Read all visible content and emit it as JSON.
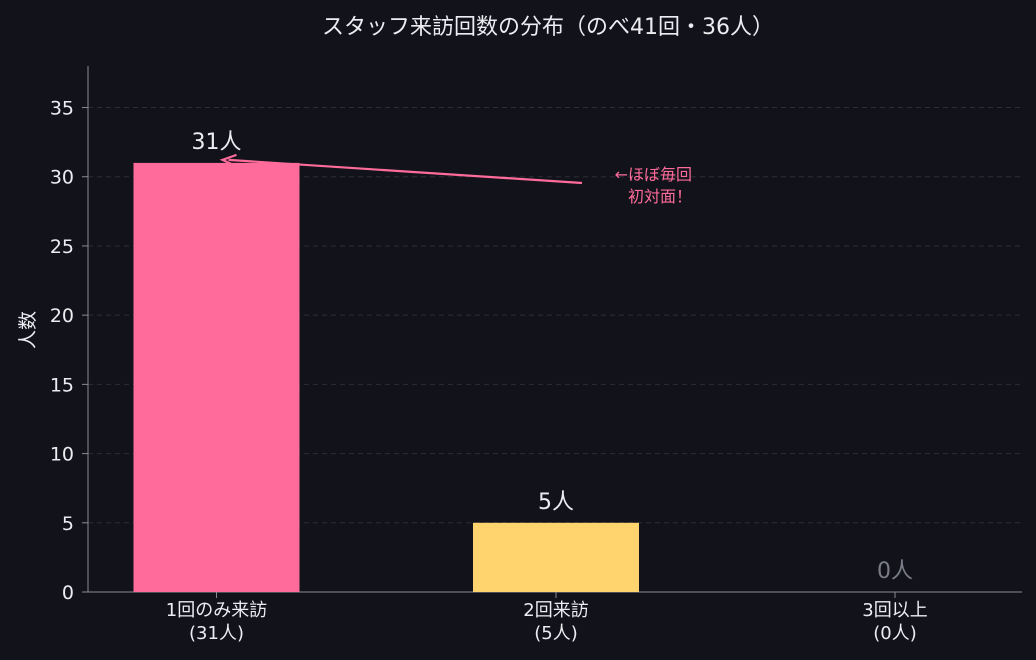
{
  "chart_data": {
    "type": "bar",
    "title": "スタッフ来訪回数の分布（のべ41回・36人）",
    "xlabel": "",
    "ylabel": "人数",
    "categories": [
      "1回のみ来訪\n(31人)",
      "2回来訪\n(5人)",
      "3回以上\n(0人)"
    ],
    "values": [
      31,
      5,
      0
    ],
    "data_labels": [
      "31人",
      "5人",
      "0人"
    ],
    "ylim": [
      0,
      38
    ],
    "yticks": [
      0,
      5,
      10,
      15,
      20,
      25,
      30,
      35
    ],
    "grid": "horizontal-dashed",
    "annotation": {
      "text": "←ほぼ毎回\n初対面！",
      "target_category": 0,
      "target_value": 31
    }
  },
  "colors": {
    "background": "#12131a",
    "axis": "#8a8a96",
    "tick_text": "#ececf1",
    "grid": "#2c2d36",
    "bar_1": "#ff6b9a",
    "bar_2": "#ffd36e",
    "bar_3": "#7a7c88",
    "label_muted": "#7a7c88",
    "annotation": "#ff6b9a",
    "title": "#ececf1"
  }
}
